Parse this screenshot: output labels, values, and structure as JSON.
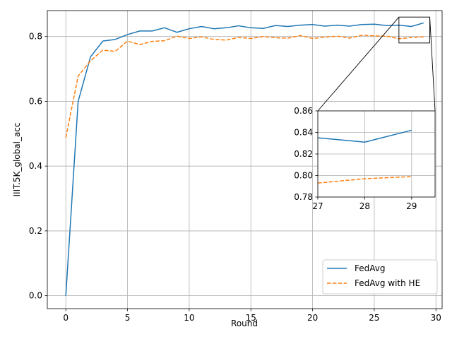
{
  "chart_data": {
    "type": "line",
    "xlabel": "Round",
    "ylabel": "IIIT.5K_global_acc",
    "xlim": [
      -1.5,
      30.5
    ],
    "ylim": [
      -0.04,
      0.88
    ],
    "xticks": [
      0,
      5,
      10,
      15,
      20,
      25,
      30
    ],
    "yticks": [
      0.0,
      0.2,
      0.4,
      0.6,
      0.8
    ],
    "xtick_labels": [
      "0",
      "5",
      "10",
      "15",
      "20",
      "25",
      "30"
    ],
    "ytick_labels": [
      "0.0",
      "0.2",
      "0.4",
      "0.6",
      "0.8"
    ],
    "grid": true,
    "legend_position": "lower right",
    "x": [
      0,
      1,
      2,
      3,
      4,
      5,
      6,
      7,
      8,
      9,
      10,
      11,
      12,
      13,
      14,
      15,
      16,
      17,
      18,
      19,
      20,
      21,
      22,
      23,
      24,
      25,
      26,
      27,
      28,
      29
    ],
    "series": [
      {
        "name": "FedAvg",
        "color": "#1f77b4",
        "style": "solid",
        "values": [
          0.0,
          0.6,
          0.737,
          0.786,
          0.791,
          0.806,
          0.817,
          0.817,
          0.827,
          0.813,
          0.824,
          0.831,
          0.824,
          0.827,
          0.833,
          0.827,
          0.825,
          0.834,
          0.831,
          0.835,
          0.837,
          0.832,
          0.835,
          0.832,
          0.837,
          0.838,
          0.834,
          0.835,
          0.831,
          0.842
        ]
      },
      {
        "name": "FedAvg with HE",
        "color": "#ff7f0e",
        "style": "dashed",
        "values": [
          0.488,
          0.678,
          0.725,
          0.758,
          0.754,
          0.786,
          0.775,
          0.785,
          0.787,
          0.801,
          0.794,
          0.799,
          0.791,
          0.789,
          0.797,
          0.794,
          0.8,
          0.796,
          0.795,
          0.803,
          0.794,
          0.798,
          0.801,
          0.795,
          0.804,
          0.802,
          0.801,
          0.793,
          0.797,
          0.799
        ]
      }
    ],
    "inset": {
      "xlim": [
        27,
        29.5
      ],
      "ylim": [
        0.78,
        0.86
      ],
      "xticks": [
        27,
        28,
        29
      ],
      "yticks": [
        0.78,
        0.8,
        0.82,
        0.84,
        0.86
      ],
      "xtick_labels": [
        "27",
        "28",
        "29"
      ],
      "ytick_labels": [
        "0.78",
        "0.80",
        "0.82",
        "0.84",
        "0.86"
      ],
      "grid": true
    }
  }
}
